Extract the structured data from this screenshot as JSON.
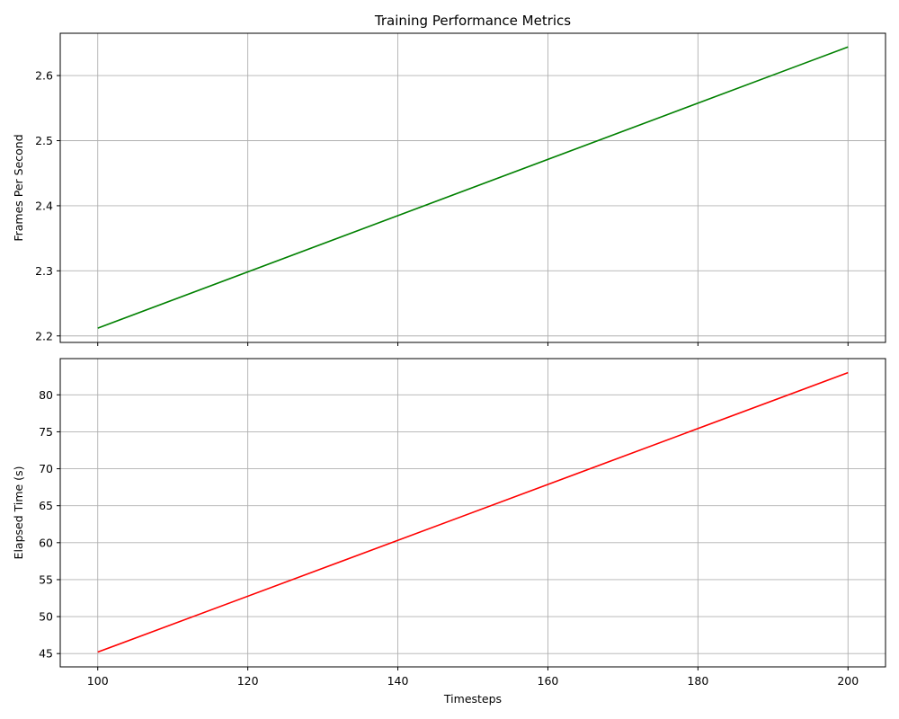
{
  "chart_data": [
    {
      "type": "line",
      "title": "Training Performance Metrics",
      "xlabel": "",
      "ylabel": "Frames Per Second",
      "xlim": [
        95,
        205
      ],
      "ylim": [
        2.19,
        2.665
      ],
      "xticks": [
        100,
        120,
        140,
        160,
        180,
        200
      ],
      "yticks": [
        2.2,
        2.3,
        2.4,
        2.5,
        2.6
      ],
      "x": [
        100,
        200
      ],
      "series": [
        {
          "values": [
            2.212,
            2.644
          ],
          "color": "#008000"
        }
      ],
      "grid": true,
      "show_xtick_labels": false
    },
    {
      "type": "line",
      "title": "",
      "xlabel": "Timesteps",
      "ylabel": "Elapsed Time (s)",
      "xlim": [
        95,
        205
      ],
      "ylim": [
        43.2,
        84.9
      ],
      "xticks": [
        100,
        120,
        140,
        160,
        180,
        200
      ],
      "yticks": [
        45,
        50,
        55,
        60,
        65,
        70,
        75,
        80
      ],
      "x": [
        100,
        200
      ],
      "series": [
        {
          "values": [
            45.2,
            83.0
          ],
          "color": "#ff0000"
        }
      ],
      "grid": true,
      "show_xtick_labels": true
    }
  ]
}
